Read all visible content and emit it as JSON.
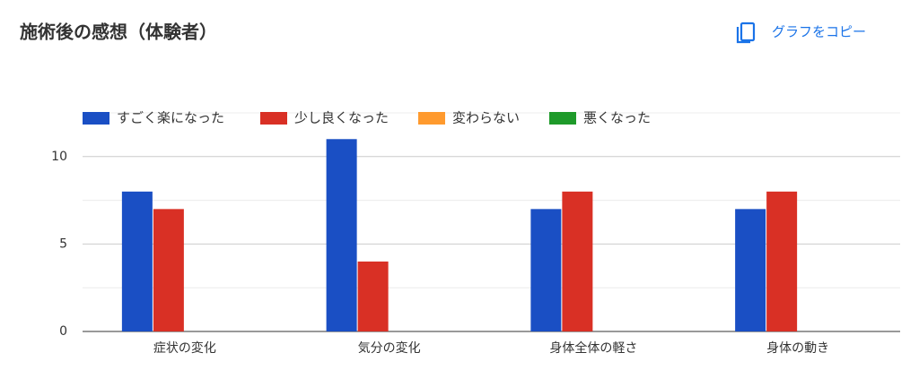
{
  "chart_data": {
    "type": "bar",
    "title": "施術後の感想（体験者）",
    "categories": [
      "症状の変化",
      "気分の変化",
      "身体全体の軽さ",
      "身体の動き"
    ],
    "series": [
      {
        "name": "すごく楽になった",
        "color": "#1a4fc4",
        "values": [
          8,
          11,
          7,
          7
        ]
      },
      {
        "name": "少し良くなった",
        "color": "#d93025",
        "values": [
          7,
          4,
          8,
          8
        ]
      },
      {
        "name": "変わらない",
        "color": "#ff9a2e",
        "values": [
          0,
          0,
          0,
          0
        ]
      },
      {
        "name": "悪くなった",
        "color": "#1e9a2a",
        "values": [
          0,
          0,
          0,
          0
        ]
      }
    ],
    "ylim": [
      0,
      12.5
    ],
    "yticks": [
      0,
      5,
      10
    ],
    "minor_yticks": [
      2.5,
      7.5,
      12.5
    ],
    "grid": true,
    "legend": "top"
  },
  "copy_button": "グラフをコピー"
}
